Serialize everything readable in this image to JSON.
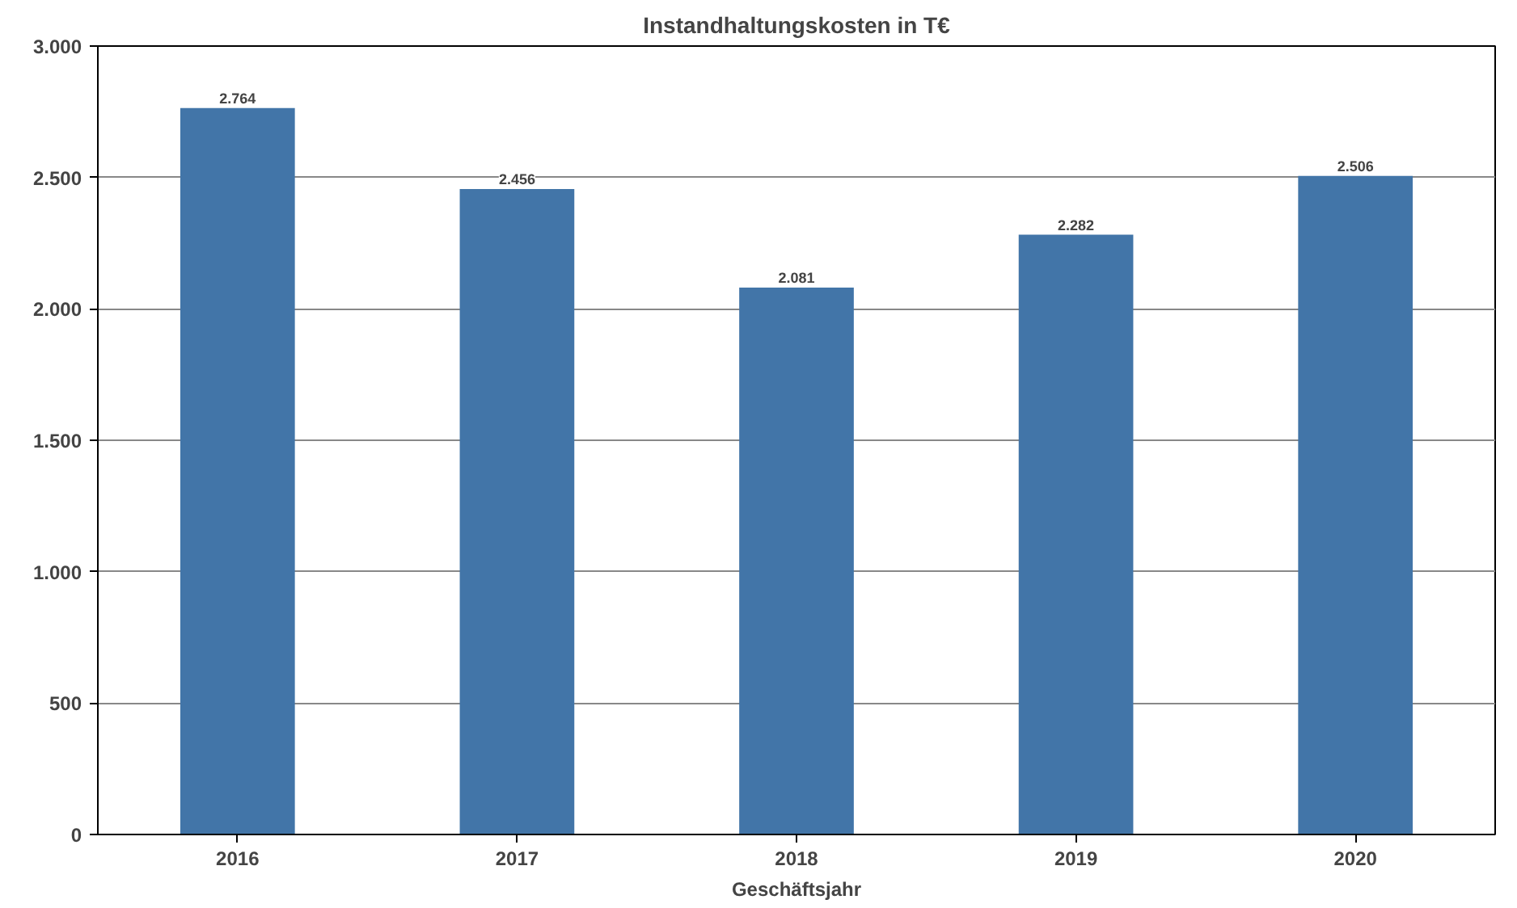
{
  "chart_data": {
    "type": "bar",
    "title": "Instandhaltungskosten in T€",
    "xlabel": "Geschäftsjahr",
    "categories": [
      "2016",
      "2017",
      "2018",
      "2019",
      "2020"
    ],
    "values": [
      2764,
      2456,
      2081,
      2282,
      2506
    ],
    "value_labels": [
      "2.764",
      "2.456",
      "2.081",
      "2.282",
      "2.506"
    ],
    "color": "#4275a8",
    "ylim": [
      0,
      3000
    ],
    "yticks": [
      {
        "value": 0,
        "label": "0"
      },
      {
        "value": 500,
        "label": "500"
      },
      {
        "value": 1000,
        "label": "1.000"
      },
      {
        "value": 1500,
        "label": "1.500"
      },
      {
        "value": 2000,
        "label": "2.000"
      },
      {
        "value": 2500,
        "label": "2.500"
      },
      {
        "value": 3000,
        "label": "3.000"
      }
    ],
    "grid": "y"
  }
}
